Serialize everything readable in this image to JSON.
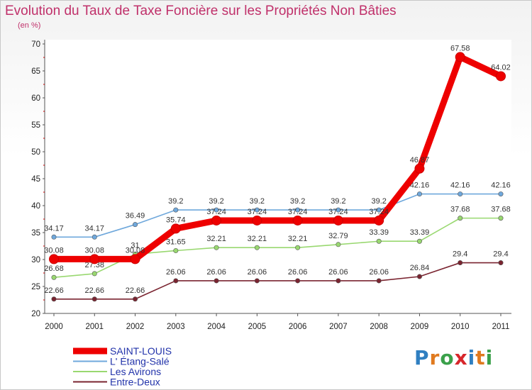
{
  "header": {
    "title": "Evolution du Taux de Taxe Foncière sur les Propriétés Non Bâties",
    "unit": "(en %)"
  },
  "logo": {
    "letters": [
      "P",
      "r",
      "o",
      "x",
      "i",
      "t",
      "i"
    ],
    "colors": [
      "#2f7fc1",
      "#e07a1f",
      "#3aa04a",
      "#d7262b",
      "#2f7fc1",
      "#e07a1f",
      "#3aa04a"
    ]
  },
  "chart_data": {
    "type": "line",
    "title": "Evolution du Taux de Taxe Foncière sur les Propriétés Non Bâties",
    "ylabel": "(en %)",
    "xlabel": "",
    "ylim": [
      20,
      70
    ],
    "yticks": [
      20,
      25,
      30,
      35,
      40,
      45,
      50,
      55,
      60,
      65,
      70
    ],
    "x": [
      "2000",
      "2001",
      "2002",
      "2003",
      "2004",
      "2005",
      "2006",
      "2007",
      "2008",
      "2009",
      "2010",
      "2011"
    ],
    "grid": false,
    "legend_position": "bottom-left",
    "series": [
      {
        "name": "Entre-Deux",
        "color": "#7a2430",
        "values": [
          22.66,
          22.66,
          22.66,
          26.06,
          26.06,
          26.06,
          26.06,
          26.06,
          26.06,
          26.84,
          29.4,
          29.4
        ],
        "labels": [
          "22.66",
          "22.66",
          "22.66",
          "26.06",
          "26.06",
          "26.06",
          "26.06",
          "26.06",
          "26.06",
          "26.84",
          "29.4",
          "29.4"
        ]
      },
      {
        "name": "Les Avirons",
        "color": "#99d870",
        "values": [
          26.68,
          27.38,
          31,
          31.65,
          32.21,
          32.21,
          32.21,
          32.79,
          33.39,
          33.39,
          37.68,
          37.68
        ],
        "labels": [
          "26.68",
          "27.38",
          "31",
          "31.65",
          "32.21",
          "32.21",
          "32.21",
          "32.79",
          "33.39",
          "33.39",
          "37.68",
          "37.68"
        ]
      },
      {
        "name": "L' Étang-Salé",
        "color": "#6fa8dc",
        "values": [
          34.17,
          34.17,
          36.49,
          39.2,
          39.2,
          39.2,
          39.2,
          39.2,
          39.2,
          42.16,
          42.16,
          42.16
        ],
        "labels": [
          "34.17",
          "34.17",
          "36.49",
          "39.2",
          "39.2",
          "39.2",
          "39.2",
          "39.2",
          "39.2",
          "42.16",
          "42.16",
          "42.16"
        ]
      },
      {
        "name": "SAINT-LOUIS",
        "color": "#ee0000",
        "values": [
          30.08,
          30.08,
          30.08,
          35.74,
          37.24,
          37.24,
          37.24,
          37.24,
          37.24,
          46.87,
          67.58,
          64.02
        ],
        "labels": [
          "30.08",
          "30.08",
          "30.08",
          "35.74",
          "37.24",
          "37.24",
          "37.24",
          "37.24",
          "37.24",
          "46.87",
          "67.58",
          "64.02"
        ]
      }
    ],
    "legend": [
      "SAINT-LOUIS",
      "L' Étang-Salé",
      "Les Avirons",
      "Entre-Deux"
    ]
  }
}
